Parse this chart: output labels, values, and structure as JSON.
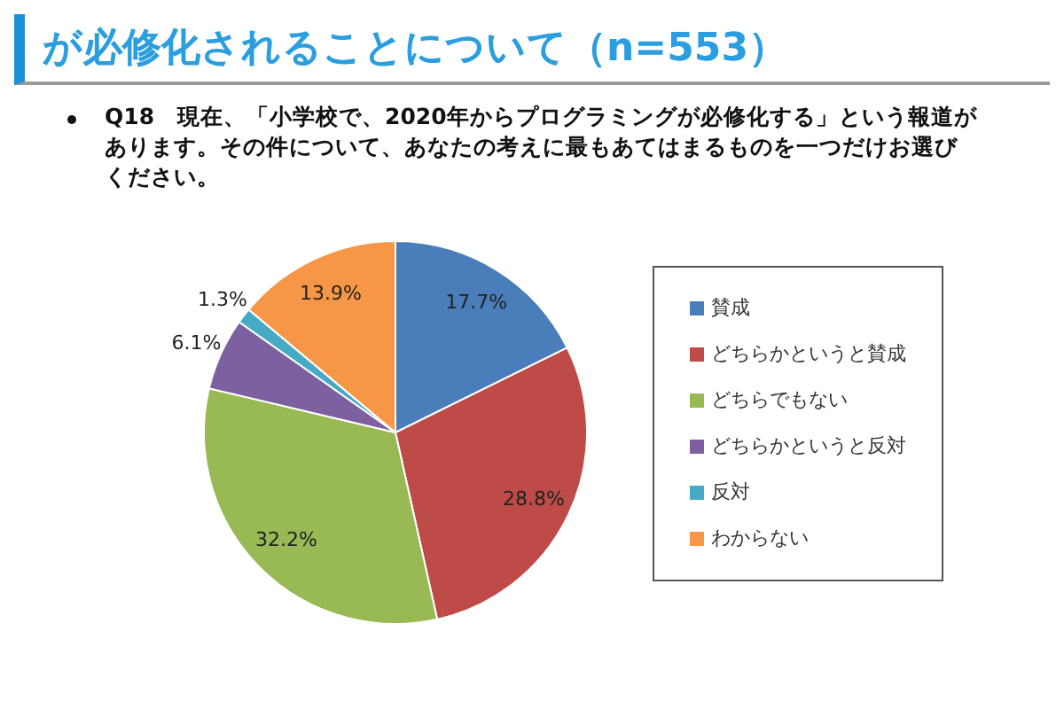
{
  "chart_data": {
    "type": "pie",
    "title": "が必修化されることについて（n=553）",
    "subtitle": "Q18　現在、「小学校で、2020年からプログラミングが必修化する」という報道があります。その件について、あなたの考えに最もあてはまるものを一つだけお選びください。",
    "categories": [
      "賛成",
      "どちらかというと賛成",
      "どちらでもない",
      "どちらかというと反対",
      "反対",
      "わからない"
    ],
    "values": [
      17.7,
      28.8,
      32.2,
      6.1,
      1.3,
      13.9
    ],
    "colors": [
      "#4a7ebb",
      "#be4b48",
      "#98b954",
      "#7d60a0",
      "#46aac5",
      "#f79646"
    ],
    "value_labels": [
      "17.7%",
      "28.8%",
      "32.2%",
      "6.1%",
      "1.3%",
      "13.9%"
    ],
    "legend": "right"
  }
}
